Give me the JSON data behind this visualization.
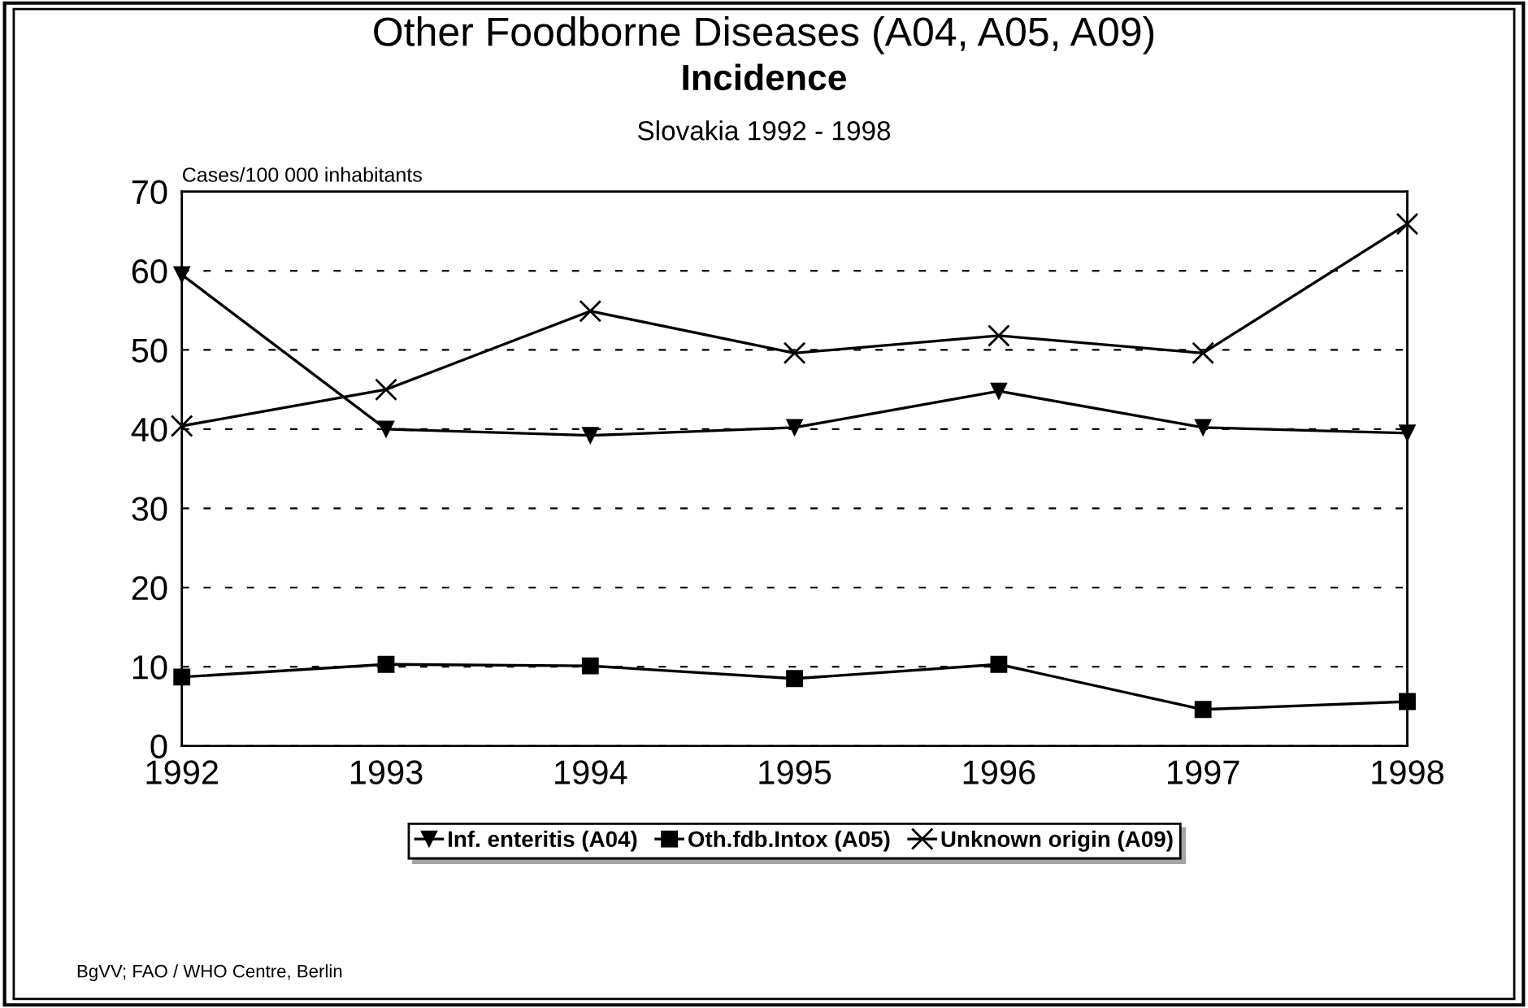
{
  "chart_data": {
    "type": "line",
    "title": "Other Foodborne Diseases (A04, A05, A09)",
    "subtitle": "Incidence",
    "annotations": [
      "Slovakia 1992 - 1998",
      "BgVV; FAO / WHO Centre, Berlin"
    ],
    "ylabel": "Cases/100 000 inhabitants",
    "x": [
      1992,
      1993,
      1994,
      1995,
      1996,
      1997,
      1998
    ],
    "xlim": [
      1992,
      1998
    ],
    "xticks": [
      1992,
      1993,
      1994,
      1995,
      1996,
      1997,
      1998
    ],
    "ylim": [
      0,
      70
    ],
    "yticks": [
      0,
      10,
      20,
      30,
      40,
      50,
      60,
      70
    ],
    "grid": "y",
    "legend": "bottom",
    "line_style": "solid",
    "series": [
      {
        "name": "Inf. enteritis (A04)",
        "color": "#000000",
        "marker": "triangle",
        "values": [
          59.5,
          40.0,
          39.2,
          40.2,
          44.8,
          40.2,
          39.5
        ]
      },
      {
        "name": "Oth.fdb.Intox (A05)",
        "color": "#000000",
        "marker": "square",
        "values": [
          8.7,
          10.3,
          10.1,
          8.5,
          10.3,
          4.6,
          5.6
        ]
      },
      {
        "name": "Unknown origin (A09)",
        "color": "#000000",
        "marker": "cross",
        "values": [
          40.4,
          45.0,
          54.9,
          49.6,
          51.8,
          49.6,
          65.9
        ]
      }
    ]
  }
}
